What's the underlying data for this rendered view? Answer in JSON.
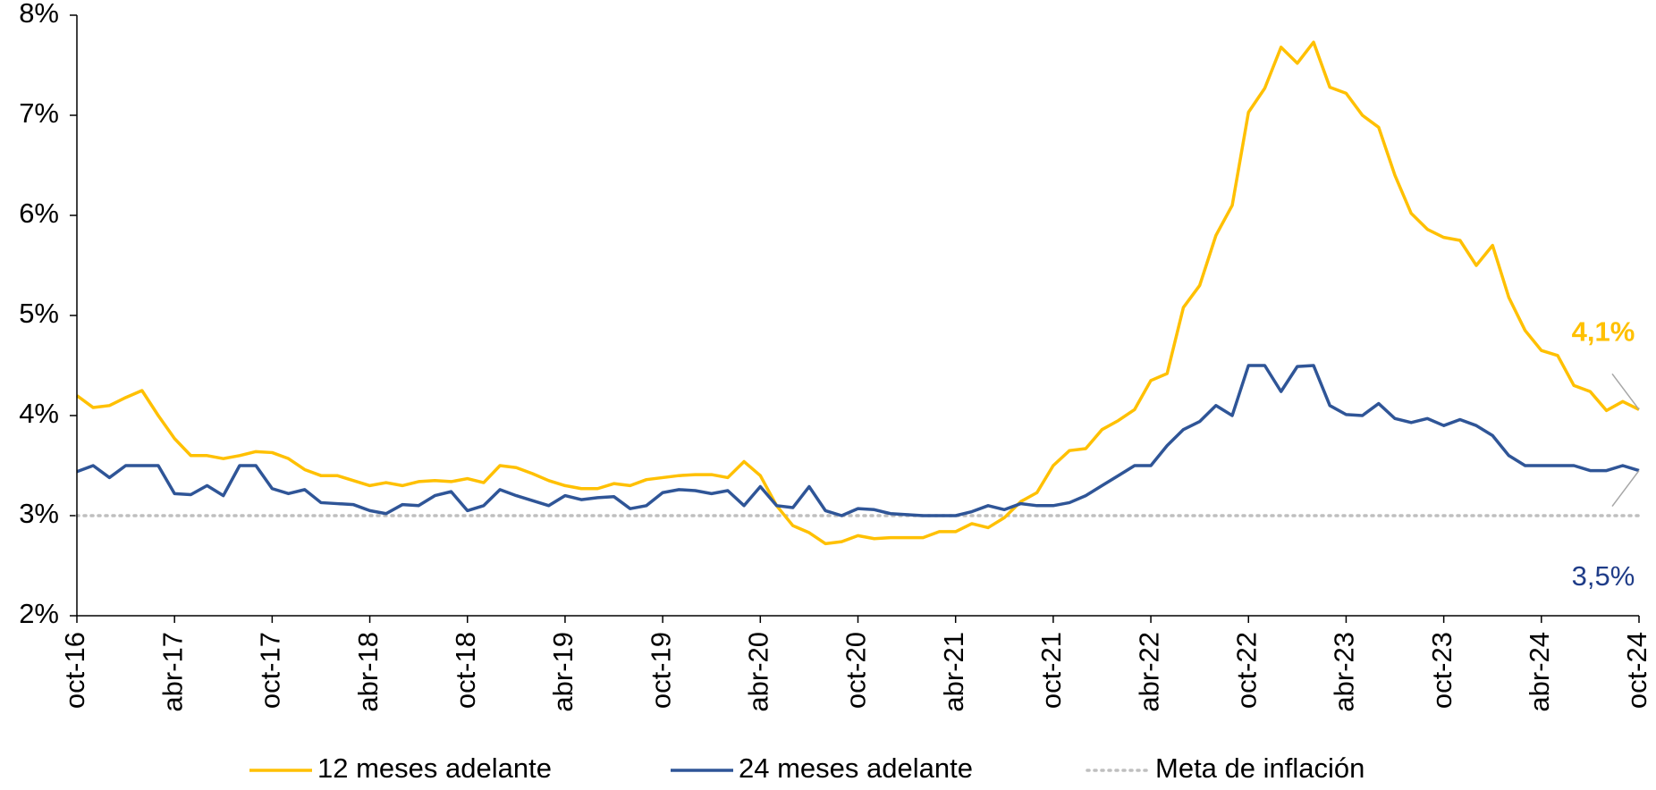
{
  "chart_data": {
    "type": "line",
    "categories": [
      "oct-16",
      null,
      null,
      null,
      null,
      null,
      "abr-17",
      null,
      null,
      null,
      null,
      null,
      "oct-17",
      null,
      null,
      null,
      null,
      null,
      "abr-18",
      null,
      null,
      null,
      null,
      null,
      "oct-18",
      null,
      null,
      null,
      null,
      null,
      "abr-19",
      null,
      null,
      null,
      null,
      null,
      "oct-19",
      null,
      null,
      null,
      null,
      null,
      "abr-20",
      null,
      null,
      null,
      null,
      null,
      "oct-20",
      null,
      null,
      null,
      null,
      null,
      "abr-21",
      null,
      null,
      null,
      null,
      null,
      "oct-21",
      null,
      null,
      null,
      null,
      null,
      "abr-22",
      null,
      null,
      null,
      null,
      null,
      "oct-22",
      null,
      null,
      null,
      null,
      null,
      "abr-23",
      null,
      null,
      null,
      null,
      null,
      "oct-23",
      null,
      null,
      null,
      null,
      null,
      "abr-24",
      null,
      null,
      null,
      null,
      null,
      "oct-24"
    ],
    "series": [
      {
        "name": "12 meses adelante",
        "color": "#FFC000",
        "style": "solid",
        "values": [
          4.2,
          4.08,
          4.1,
          4.18,
          4.25,
          4.0,
          3.77,
          3.6,
          3.6,
          3.57,
          3.6,
          3.64,
          3.63,
          3.57,
          3.46,
          3.4,
          3.4,
          3.35,
          3.3,
          3.33,
          3.3,
          3.34,
          3.35,
          3.34,
          3.37,
          3.33,
          3.5,
          3.48,
          3.42,
          3.35,
          3.3,
          3.27,
          3.27,
          3.32,
          3.3,
          3.36,
          3.38,
          3.4,
          3.41,
          3.41,
          3.38,
          3.54,
          3.4,
          3.1,
          2.9,
          2.83,
          2.72,
          2.74,
          2.8,
          2.77,
          2.78,
          2.78,
          2.78,
          2.84,
          2.84,
          2.92,
          2.88,
          2.98,
          3.14,
          3.23,
          3.5,
          3.65,
          3.67,
          3.86,
          3.95,
          4.06,
          4.35,
          4.42,
          5.08,
          5.3,
          5.8,
          6.1,
          7.03,
          7.27,
          7.68,
          7.52,
          7.73,
          7.28,
          7.22,
          7.0,
          6.88,
          6.4,
          6.02,
          5.86,
          5.78,
          5.75,
          5.5,
          5.7,
          5.18,
          4.85,
          4.65,
          4.6,
          4.3,
          4.24,
          4.05,
          4.14,
          4.06
        ],
        "value_labels": [
          null,
          null,
          null,
          null,
          null,
          null,
          null,
          null,
          null,
          null,
          null,
          null,
          null,
          null,
          null,
          null,
          null,
          null,
          null,
          null,
          null,
          null,
          null,
          null,
          null,
          null,
          null,
          null,
          null,
          null,
          null,
          null,
          null,
          null,
          null,
          null,
          null,
          null,
          null,
          null,
          null,
          null,
          null,
          null,
          null,
          null,
          null,
          null,
          null,
          null,
          null,
          null,
          null,
          null,
          null,
          null,
          null,
          null,
          null,
          null,
          null,
          null,
          null,
          null,
          null,
          null,
          null,
          null,
          null,
          null,
          null,
          null,
          null,
          null,
          null,
          null,
          null,
          null,
          null,
          null,
          null,
          null,
          null,
          null,
          null,
          null,
          null,
          null,
          null,
          null,
          null,
          null,
          null,
          null,
          null,
          null,
          "4,1%"
        ]
      },
      {
        "name": "24 meses adelante",
        "color": "#2F5597",
        "style": "solid",
        "values": [
          3.44,
          3.5,
          3.38,
          3.5,
          3.5,
          3.5,
          3.22,
          3.21,
          3.3,
          3.2,
          3.5,
          3.5,
          3.27,
          3.22,
          3.26,
          3.13,
          3.12,
          3.11,
          3.05,
          3.02,
          3.11,
          3.1,
          3.2,
          3.24,
          3.05,
          3.1,
          3.26,
          3.2,
          3.15,
          3.1,
          3.2,
          3.16,
          3.18,
          3.19,
          3.07,
          3.1,
          3.23,
          3.26,
          3.25,
          3.22,
          3.25,
          3.1,
          3.29,
          3.1,
          3.08,
          3.29,
          3.05,
          3.0,
          3.07,
          3.06,
          3.02,
          3.01,
          3.0,
          3.0,
          3.0,
          3.04,
          3.1,
          3.06,
          3.12,
          3.1,
          3.1,
          3.13,
          3.2,
          3.3,
          3.4,
          3.5,
          3.5,
          3.7,
          3.86,
          3.94,
          4.1,
          4.0,
          4.5,
          4.5,
          4.24,
          4.49,
          4.5,
          4.1,
          4.01,
          4.0,
          4.12,
          3.97,
          3.93,
          3.97,
          3.9,
          3.96,
          3.9,
          3.8,
          3.6,
          3.5,
          3.5,
          3.5,
          3.5,
          3.45,
          3.45,
          3.5,
          3.45
        ],
        "value_labels": [
          null,
          null,
          null,
          null,
          null,
          null,
          null,
          null,
          null,
          null,
          null,
          null,
          null,
          null,
          null,
          null,
          null,
          null,
          null,
          null,
          null,
          null,
          null,
          null,
          null,
          null,
          null,
          null,
          null,
          null,
          null,
          null,
          null,
          null,
          null,
          null,
          null,
          null,
          null,
          null,
          null,
          null,
          null,
          null,
          null,
          null,
          null,
          null,
          null,
          null,
          null,
          null,
          null,
          null,
          null,
          null,
          null,
          null,
          null,
          null,
          null,
          null,
          null,
          null,
          null,
          null,
          null,
          null,
          null,
          null,
          null,
          null,
          null,
          null,
          null,
          null,
          null,
          null,
          null,
          null,
          null,
          null,
          null,
          null,
          null,
          null,
          null,
          null,
          null,
          null,
          null,
          null,
          null,
          null,
          null,
          null,
          "3,5%"
        ]
      },
      {
        "name": "Meta de inflación",
        "color": "#BFBFBF",
        "style": "dotted",
        "values": [
          3,
          3,
          3,
          3,
          3,
          3,
          3,
          3,
          3,
          3,
          3,
          3,
          3,
          3,
          3,
          3,
          3,
          3,
          3,
          3,
          3,
          3,
          3,
          3,
          3,
          3,
          3,
          3,
          3,
          3,
          3,
          3,
          3,
          3,
          3,
          3,
          3,
          3,
          3,
          3,
          3,
          3,
          3,
          3,
          3,
          3,
          3,
          3,
          3,
          3,
          3,
          3,
          3,
          3,
          3,
          3,
          3,
          3,
          3,
          3,
          3,
          3,
          3,
          3,
          3,
          3,
          3,
          3,
          3,
          3,
          3,
          3,
          3,
          3,
          3,
          3,
          3,
          3,
          3,
          3,
          3,
          3,
          3,
          3,
          3,
          3,
          3,
          3,
          3,
          3,
          3,
          3,
          3,
          3,
          3,
          3,
          3
        ]
      }
    ],
    "ylim": [
      2,
      8
    ],
    "yticks": [
      {
        "value": 2,
        "label": "2%"
      },
      {
        "value": 3,
        "label": "3%"
      },
      {
        "value": 4,
        "label": "4%"
      },
      {
        "value": 5,
        "label": "5%"
      },
      {
        "value": 6,
        "label": "6%"
      },
      {
        "value": 7,
        "label": "7%"
      },
      {
        "value": 8,
        "label": "8%"
      }
    ],
    "grid": false,
    "legend": "bottom"
  }
}
